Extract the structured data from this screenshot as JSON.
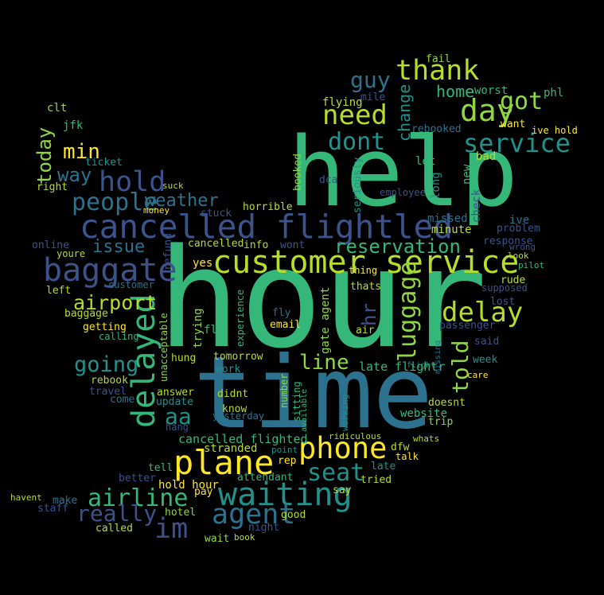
{
  "words": [
    {
      "text": "hour",
      "color": "#35b779"
    },
    {
      "text": "time",
      "color": "#2c728e"
    },
    {
      "text": "help",
      "color": "#35b779"
    },
    {
      "text": "customer service",
      "color": "#b5de2b"
    },
    {
      "text": "cancelled flightled",
      "color": "#3b528b"
    },
    {
      "text": "delayed",
      "color": "#35b779"
    },
    {
      "text": "plane",
      "color": "#fde725"
    },
    {
      "text": "waiting",
      "color": "#21918c"
    },
    {
      "text": "agent",
      "color": "#2c728e"
    },
    {
      "text": "phone",
      "color": "#fde725"
    },
    {
      "text": "baggate",
      "color": "#3b528b"
    },
    {
      "text": "airline",
      "color": "#35b779"
    },
    {
      "text": "im",
      "color": "#3b528b"
    },
    {
      "text": "day",
      "color": "#90d743"
    },
    {
      "text": "delay",
      "color": "#b5de2b"
    },
    {
      "text": "thank",
      "color": "#b5de2b"
    },
    {
      "text": "need",
      "color": "#b5de2b"
    },
    {
      "text": "hold",
      "color": "#3b528b"
    },
    {
      "text": "service",
      "color": "#21918c"
    },
    {
      "text": "dont",
      "color": "#21918c"
    },
    {
      "text": "got",
      "color": "#90d743"
    },
    {
      "text": "people",
      "color": "#2c728e"
    },
    {
      "text": "really",
      "color": "#3b528b"
    },
    {
      "text": "seat",
      "color": "#21918c"
    },
    {
      "text": "luggage",
      "color": "#90d743"
    },
    {
      "text": "airport",
      "color": "#b5de2b"
    },
    {
      "text": "reservation",
      "color": "#35b779"
    },
    {
      "text": "line",
      "color": "#90d743"
    },
    {
      "text": "going",
      "color": "#21918c"
    },
    {
      "text": "told",
      "color": "#90d743"
    },
    {
      "text": "guy",
      "color": "#2c728e"
    },
    {
      "text": "aa",
      "color": "#21918c"
    },
    {
      "text": "weather",
      "color": "#2c728e"
    },
    {
      "text": "home",
      "color": "#35b779"
    },
    {
      "text": "min",
      "color": "#fde725"
    },
    {
      "text": "way",
      "color": "#2c728e"
    },
    {
      "text": "issue",
      "color": "#2c728e"
    },
    {
      "text": "today",
      "color": "#90d743"
    },
    {
      "text": "change",
      "color": "#21918c"
    },
    {
      "text": "hr",
      "color": "#3b528b"
    },
    {
      "text": "cancelled flighted",
      "color": "#35b779"
    },
    {
      "text": "gate agent",
      "color": "#90d743"
    },
    {
      "text": "late flightr",
      "color": "#35b779"
    },
    {
      "text": "hold hour",
      "color": "#fde725"
    },
    {
      "text": "website",
      "color": "#35b779"
    },
    {
      "text": "worst",
      "color": "#35b779"
    },
    {
      "text": "missed",
      "color": "#2c728e"
    },
    {
      "text": "minute",
      "color": "#b5de2b"
    },
    {
      "text": "flying",
      "color": "#b5de2b"
    },
    {
      "text": "bad",
      "color": "#b5de2b"
    },
    {
      "text": "want",
      "color": "#fde725"
    },
    {
      "text": "ive hold",
      "color": "#fde725"
    },
    {
      "text": "phl",
      "color": "#35b779"
    },
    {
      "text": "rebooked",
      "color": "#2c728e"
    },
    {
      "text": "let",
      "color": "#35b779"
    },
    {
      "text": "check",
      "color": "#3b528b"
    },
    {
      "text": "new",
      "color": "#35b779"
    },
    {
      "text": "long",
      "color": "#21918c"
    },
    {
      "text": "ive",
      "color": "#2c728e"
    },
    {
      "text": "problem",
      "color": "#3b528b"
    },
    {
      "text": "response",
      "color": "#3b528b"
    },
    {
      "text": "wrong",
      "color": "#3b528b"
    },
    {
      "text": "look",
      "color": "#b5de2b"
    },
    {
      "text": "pilot",
      "color": "#35b779"
    },
    {
      "text": "rude",
      "color": "#b5de2b"
    },
    {
      "text": "lost",
      "color": "#3b528b"
    },
    {
      "text": "passenger",
      "color": "#3b528b"
    },
    {
      "text": "said",
      "color": "#3b528b"
    },
    {
      "text": "week",
      "color": "#21918c"
    },
    {
      "text": "care",
      "color": "#fde725"
    },
    {
      "text": "doesnt",
      "color": "#b5de2b"
    },
    {
      "text": "trip",
      "color": "#90d743"
    },
    {
      "text": "whats",
      "color": "#b5de2b"
    },
    {
      "text": "talk",
      "color": "#fde725"
    },
    {
      "text": "late",
      "color": "#21918c"
    },
    {
      "text": "dfw",
      "color": "#b5de2b"
    },
    {
      "text": "tried",
      "color": "#b5de2b"
    },
    {
      "text": "say",
      "color": "#b5de2b"
    },
    {
      "text": "good",
      "color": "#b5de2b"
    },
    {
      "text": "night",
      "color": "#3b528b"
    },
    {
      "text": "book",
      "color": "#b5de2b"
    },
    {
      "text": "rep",
      "color": "#fde725"
    },
    {
      "text": "point",
      "color": "#21918c"
    },
    {
      "text": "ridiculous",
      "color": "#b5de2b"
    },
    {
      "text": "sitting",
      "color": "#35b779"
    },
    {
      "text": "available",
      "color": "#35b779"
    },
    {
      "text": "number",
      "color": "#90d743"
    },
    {
      "text": "attendant",
      "color": "#35b779"
    },
    {
      "text": "stranded",
      "color": "#b5de2b"
    },
    {
      "text": "yesterday",
      "color": "#2c728e"
    },
    {
      "text": "know",
      "color": "#b5de2b"
    },
    {
      "text": "didnt",
      "color": "#b5de2b"
    },
    {
      "text": "work",
      "color": "#21918c"
    },
    {
      "text": "tomorrow",
      "color": "#b5de2b"
    },
    {
      "text": "flt",
      "color": "#35b779"
    },
    {
      "text": "yes",
      "color": "#fde725"
    },
    {
      "text": "trying",
      "color": "#90d743"
    },
    {
      "text": "experience",
      "color": "#35b779"
    },
    {
      "text": "email",
      "color": "#fde725"
    },
    {
      "text": "fly",
      "color": "#2c728e"
    },
    {
      "text": "info",
      "color": "#b5de2b"
    },
    {
      "text": "wont",
      "color": "#3b528b"
    },
    {
      "text": "thats",
      "color": "#b5de2b"
    },
    {
      "text": "thing",
      "color": "#fde725"
    },
    {
      "text": "air",
      "color": "#b5de2b"
    },
    {
      "text": "horrible",
      "color": "#b5de2b"
    },
    {
      "text": "dca",
      "color": "#3b528b"
    },
    {
      "text": "booked",
      "color": "#90d743"
    },
    {
      "text": "seriously",
      "color": "#21918c"
    },
    {
      "text": "employee",
      "color": "#3b528b"
    },
    {
      "text": "stuck",
      "color": "#3b528b"
    },
    {
      "text": "cancelled",
      "color": "#b5de2b"
    },
    {
      "text": "refund",
      "color": "#3b528b"
    },
    {
      "text": "unacceptable",
      "color": "#90d743"
    },
    {
      "text": "hung",
      "color": "#b5de2b"
    },
    {
      "text": "answer",
      "color": "#b5de2b"
    },
    {
      "text": "update",
      "color": "#21918c"
    },
    {
      "text": "hang",
      "color": "#3b528b"
    },
    {
      "text": "rebook",
      "color": "#b5de2b"
    },
    {
      "text": "travel",
      "color": "#3b528b"
    },
    {
      "text": "come",
      "color": "#2c728e"
    },
    {
      "text": "getting",
      "color": "#fde725"
    },
    {
      "text": "calling",
      "color": "#35b779"
    },
    {
      "text": "baggage",
      "color": "#b5de2b"
    },
    {
      "text": "left",
      "color": "#b5de2b"
    },
    {
      "text": "customer",
      "color": "#2c728e"
    },
    {
      "text": "online",
      "color": "#3b528b"
    },
    {
      "text": "youre",
      "color": "#b5de2b"
    },
    {
      "text": "ticket",
      "color": "#21918c"
    },
    {
      "text": "right",
      "color": "#b5de2b"
    },
    {
      "text": "money",
      "color": "#fde725"
    },
    {
      "text": "suck",
      "color": "#b5de2b"
    },
    {
      "text": "jfk",
      "color": "#35b779"
    },
    {
      "text": "clt",
      "color": "#90d743"
    },
    {
      "text": "mile",
      "color": "#3b528b"
    },
    {
      "text": "fail",
      "color": "#90d743"
    },
    {
      "text": "tell",
      "color": "#35b779"
    },
    {
      "text": "better",
      "color": "#3b528b"
    },
    {
      "text": "make",
      "color": "#2c728e"
    },
    {
      "text": "staff",
      "color": "#3b528b"
    },
    {
      "text": "havent",
      "color": "#b5de2b"
    },
    {
      "text": "called",
      "color": "#b5de2b"
    },
    {
      "text": "hotel",
      "color": "#90d743"
    },
    {
      "text": "pay",
      "color": "#fde725"
    },
    {
      "text": "wait",
      "color": "#90d743"
    },
    {
      "text": "supposed",
      "color": "#3b528b"
    },
    {
      "text": "flight",
      "color": "#21918c"
    },
    {
      "text": "missing",
      "color": "#2c728e"
    },
    {
      "text": "working",
      "color": "#21918c"
    }
  ]
}
